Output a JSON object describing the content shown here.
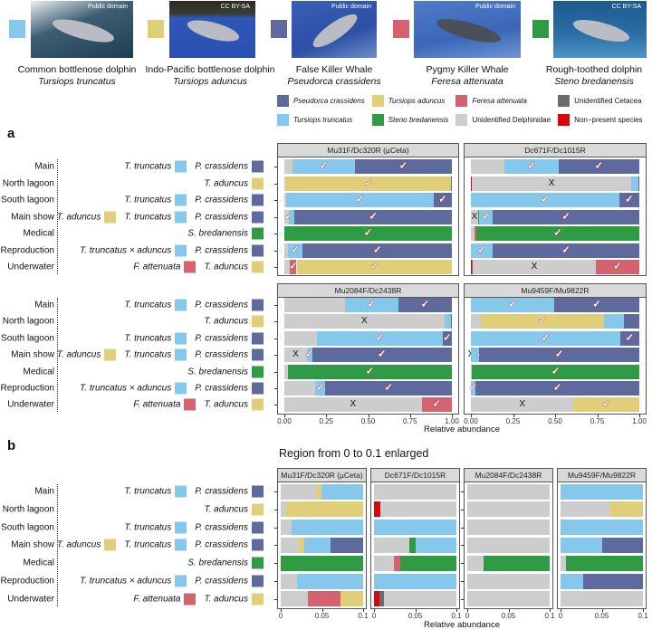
{
  "colors": {
    "PC": "#5E6A9E",
    "TT": "#85C8EB",
    "TA": "#E0CE78",
    "FA": "#D5626F",
    "SB": "#2F9B45",
    "UD": "#CDCDCD",
    "UC": "#6B6B6B",
    "NP": "#D7070E"
  },
  "header_species": [
    {
      "color_key": "TT",
      "common": "Common bottlenose dolphin",
      "scientific": "Tursiops truncatus",
      "license": "Public domain"
    },
    {
      "color_key": "TA",
      "common": "Indo-Pacific bottlenose dolphin",
      "scientific": "Tursiops aduncus",
      "license": "CC BY-SA"
    },
    {
      "color_key": "PC",
      "common": "False Killer Whale",
      "scientific": "Pseudorca crassidens",
      "license": "Public domain"
    },
    {
      "color_key": "FA",
      "common": "Pygmy Killer Whale",
      "scientific": "Feresa attenuata",
      "license": "Public domain"
    },
    {
      "color_key": "SB",
      "common": "Rough-toothed dolphin",
      "scientific": "Steno bredanensis",
      "license": "CC BY-SA"
    }
  ],
  "panel_labels": {
    "a": "a",
    "b": "b"
  },
  "legend": [
    {
      "key": "PC",
      "label": "Pseudorca crassidens",
      "italic": true
    },
    {
      "key": "TT",
      "label": "Tursiops truncatus",
      "italic": true
    },
    {
      "key": "TA",
      "label": "Tursiops aduncus",
      "italic": true
    },
    {
      "key": "SB",
      "label": "Steno bredanensis",
      "italic": true
    },
    {
      "key": "FA",
      "label": "Feresa attenuata",
      "italic": true
    },
    {
      "key": "UD",
      "label": "Unidentified Delphinidae",
      "italic": false
    },
    {
      "key": "UC",
      "label": "Unidentified Cetacea",
      "italic": false
    },
    {
      "key": "NP",
      "label": "Non−present species",
      "italic": false
    }
  ],
  "rows": [
    {
      "area": "Main",
      "species": [
        {
          "label": "T. truncatus",
          "key": "TT"
        },
        {
          "label": "P. crassidens",
          "key": "PC"
        }
      ]
    },
    {
      "area": "North lagoon",
      "species": [
        {
          "label": "T. aduncus",
          "key": "TA"
        }
      ]
    },
    {
      "area": "South lagoon",
      "species": [
        {
          "label": "T. truncatus",
          "key": "TT"
        },
        {
          "label": "P. crassidens",
          "key": "PC"
        }
      ]
    },
    {
      "area": "Main show",
      "species": [
        {
          "label": "T. aduncus",
          "key": "TA"
        },
        {
          "label": "T. truncatus",
          "key": "TT"
        },
        {
          "label": "P. crassidens",
          "key": "PC"
        }
      ]
    },
    {
      "area": "Medical",
      "species": [
        {
          "label": "S. bredanensis",
          "key": "SB"
        }
      ]
    },
    {
      "area": "Reproduction",
      "species": [
        {
          "label": "T. truncatus × aduncus",
          "key": "TT"
        },
        {
          "label": "P. crassidens",
          "key": "PC"
        }
      ]
    },
    {
      "area": "Underwater",
      "species": [
        {
          "label": "F. attenuata",
          "key": "FA"
        },
        {
          "label": "T. aduncus",
          "key": "TA"
        }
      ]
    }
  ],
  "chart_data": [
    {
      "type": "bar",
      "orientation": "horizontal-stacked",
      "panel": "a",
      "xlabel": "Relative abundance",
      "xlim": [
        0,
        1
      ],
      "xticks": [
        "0.00",
        "0.25",
        "0.50",
        "0.75",
        "1.00"
      ],
      "xtick_values": [
        0,
        0.25,
        0.5,
        0.75,
        1
      ],
      "legend_position": "top",
      "marks_legend": {
        "check": "✓",
        "x": "X"
      },
      "facets": [
        {
          "title": "Mu31F/Dc320R (µCeta)",
          "bars": [
            [
              [
                "UD",
                0.043,
                null
              ],
              [
                "TA",
                0.006,
                null
              ],
              [
                "TT",
                0.371,
                "check"
              ],
              [
                "PC",
                0.58,
                "check"
              ]
            ],
            [
              [
                "UD",
                0.007,
                null
              ],
              [
                "TA",
                0.988,
                "check"
              ],
              [
                "PC",
                0.005,
                null
              ]
            ],
            [
              [
                "UD",
                0.013,
                null
              ],
              [
                "TT",
                0.877,
                "check"
              ],
              [
                "PC",
                0.11,
                "check"
              ]
            ],
            [
              [
                "UD",
                0.022,
                null
              ],
              [
                "TA",
                0.007,
                "check"
              ],
              [
                "TT",
                0.031,
                "check"
              ],
              [
                "PC",
                0.94,
                "check"
              ]
            ],
            [
              [
                "SB",
                1.0,
                "check"
              ]
            ],
            [
              [
                "UD",
                0.02,
                null
              ],
              [
                "TT",
                0.09,
                "check"
              ],
              [
                "PC",
                0.89,
                "check"
              ]
            ],
            [
              [
                "UD",
                0.033,
                null
              ],
              [
                "FA",
                0.04,
                "check"
              ],
              [
                "TA",
                0.927,
                "check"
              ]
            ]
          ]
        },
        {
          "title": "Dc671F/Dc1015R",
          "bars": [
            [
              [
                "UD",
                0.2,
                null
              ],
              [
                "TT",
                0.32,
                "check"
              ],
              [
                "PC",
                0.48,
                "check"
              ]
            ],
            [
              [
                "NP",
                0.008,
                null
              ],
              [
                "UD",
                0.942,
                "x"
              ],
              [
                "TT",
                0.045,
                null
              ],
              [
                "PC",
                0.005,
                null
              ]
            ],
            [
              [
                "TT",
                0.88,
                "check"
              ],
              [
                "PC",
                0.12,
                "check"
              ]
            ],
            [
              [
                "UD",
                0.043,
                "x"
              ],
              [
                "SB",
                0.008,
                null
              ],
              [
                "TT",
                0.079,
                "check"
              ],
              [
                "PC",
                0.87,
                "check"
              ]
            ],
            [
              [
                "UD",
                0.024,
                null
              ],
              [
                "FA",
                0.008,
                null
              ],
              [
                "SB",
                0.968,
                "check"
              ]
            ],
            [
              [
                "TT",
                0.13,
                "check"
              ],
              [
                "PC",
                0.87,
                "check"
              ]
            ],
            [
              [
                "NP",
                0.007,
                null
              ],
              [
                "UC",
                0.005,
                null
              ],
              [
                "UD",
                0.728,
                "x"
              ],
              [
                "FA",
                0.26,
                "check"
              ]
            ]
          ]
        },
        {
          "title": "Mu2084F/Dc2438R",
          "bars": [
            [
              [
                "UD",
                0.36,
                null
              ],
              [
                "TT",
                0.32,
                "check"
              ],
              [
                "PC",
                0.32,
                "check"
              ]
            ],
            [
              [
                "UD",
                0.955,
                "x"
              ],
              [
                "TT",
                0.04,
                null
              ],
              [
                "PC",
                0.005,
                null
              ]
            ],
            [
              [
                "UD",
                0.195,
                null
              ],
              [
                "TT",
                0.75,
                "check"
              ],
              [
                "PC",
                0.055,
                "check"
              ]
            ],
            [
              [
                "UD",
                0.135,
                "x"
              ],
              [
                "TT",
                0.03,
                "check"
              ],
              [
                "PC",
                0.835,
                "check"
              ]
            ],
            [
              [
                "UD",
                0.02,
                null
              ],
              [
                "SB",
                0.98,
                "check"
              ]
            ],
            [
              [
                "UD",
                0.185,
                null
              ],
              [
                "TT",
                0.06,
                "check"
              ],
              [
                "PC",
                0.755,
                "check"
              ]
            ],
            [
              [
                "UD",
                0.82,
                "x"
              ],
              [
                "FA",
                0.18,
                "check"
              ]
            ]
          ]
        },
        {
          "title": "Mu9459F/Mu9822R",
          "bars": [
            [
              [
                "TT",
                0.495,
                "check"
              ],
              [
                "PC",
                0.505,
                "check"
              ]
            ],
            [
              [
                "UD",
                0.06,
                null
              ],
              [
                "TA",
                0.73,
                "check"
              ],
              [
                "TT",
                0.12,
                null
              ],
              [
                "PC",
                0.09,
                null
              ]
            ],
            [
              [
                "TT",
                0.885,
                "check"
              ],
              [
                "PC",
                0.115,
                "check"
              ]
            ],
            [
              [
                "UD",
                0.0,
                "x"
              ],
              [
                "TT",
                0.05,
                "check"
              ],
              [
                "PC",
                0.95,
                "check"
              ]
            ],
            [
              [
                "UD",
                0.007,
                null
              ],
              [
                "SB",
                0.993,
                "check"
              ]
            ],
            [
              [
                "TT",
                0.028,
                "check"
              ],
              [
                "PC",
                0.972,
                "check"
              ]
            ],
            [
              [
                "UD",
                0.61,
                "x"
              ],
              [
                "TA",
                0.39,
                "check"
              ]
            ]
          ]
        }
      ]
    },
    {
      "type": "bar",
      "orientation": "horizontal-stacked",
      "panel": "b",
      "title": "Region from 0 to 0.1 enlarged",
      "xlabel": "Relative abundance",
      "xlim": [
        0,
        0.1
      ],
      "xticks": [
        "0",
        "0.05",
        "0.1"
      ],
      "xtick_values": [
        0,
        0.05,
        0.1
      ],
      "note": "same facets and values as panel a, axis limited to 0–0.1"
    }
  ]
}
